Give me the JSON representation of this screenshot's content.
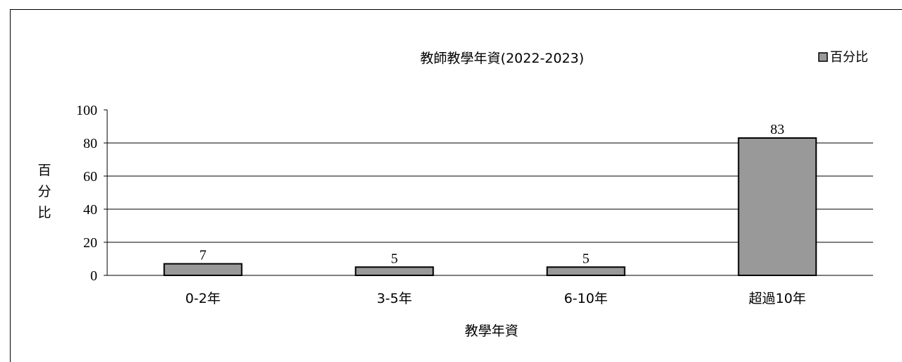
{
  "chart_data": {
    "type": "bar",
    "title": "教師教學年資(2022-2023)",
    "xlabel": "教學年資",
    "ylabel": "百分比",
    "categories": [
      "0-2年",
      "3-5年",
      "6-10年",
      "超過10年"
    ],
    "series": [
      {
        "name": "百分比",
        "values": [
          7,
          5,
          5,
          83
        ]
      }
    ],
    "data_labels": [
      "7",
      "5",
      "5",
      "83"
    ],
    "ylim": [
      0,
      100
    ],
    "yticks": [
      "0",
      "20",
      "40",
      "60",
      "80",
      "100"
    ],
    "grid": true,
    "legend_position": "top-right",
    "colors": {
      "bar": "#999999",
      "bar_border": "#000000",
      "grid": "#000000"
    }
  }
}
